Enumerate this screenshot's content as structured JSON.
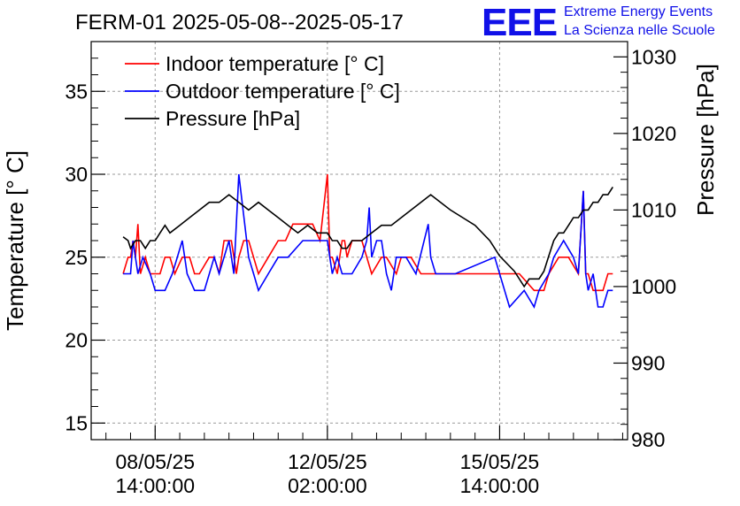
{
  "chart_data": {
    "type": "line",
    "title": "FERM-01 2025-05-08--2025-05-17",
    "ylabel": "Temperature [° C]",
    "y2label": "Pressure [hPa]",
    "xlabel": "",
    "ylim": [
      14,
      38
    ],
    "y2lim": [
      980,
      1032
    ],
    "xlim": [
      -1.3,
      9.6
    ],
    "x_unit": "days after 08/05/25 14:00:00",
    "grid": true,
    "legend_position": "top-left",
    "y_ticks": [
      "15",
      "20",
      "25",
      "30",
      "35"
    ],
    "y2_ticks": [
      "980",
      "990",
      "1000",
      "1010",
      "1020",
      "1030"
    ],
    "x_ticks": [
      {
        "x": 0,
        "line1": "08/05/25",
        "line2": "14:00:00"
      },
      {
        "x": 3.5,
        "line1": "12/05/25",
        "line2": "02:00:00"
      },
      {
        "x": 7,
        "line1": "15/05/25",
        "line2": "14:00:00"
      }
    ],
    "logo": {
      "mark": "EEE",
      "line1": "Extreme Energy Events",
      "line2": "La Scienza nelle Scuole"
    },
    "series": [
      {
        "name": "Indoor temperature [° C]",
        "axis": "left",
        "color": "#ff0000",
        "x": [
          -0.65,
          -0.55,
          -0.5,
          -0.45,
          -0.4,
          -0.35,
          -0.3,
          -0.2,
          -0.1,
          0.1,
          0.2,
          0.3,
          0.4,
          0.55,
          0.7,
          0.8,
          0.9,
          1.1,
          1.2,
          1.3,
          1.4,
          1.55,
          1.65,
          1.7,
          1.8,
          1.9,
          2.1,
          2.3,
          2.5,
          2.65,
          2.8,
          3.0,
          3.2,
          3.35,
          3.5,
          3.55,
          3.6,
          3.7,
          3.75,
          3.8,
          3.85,
          3.9,
          4.0,
          4.2,
          4.4,
          4.6,
          4.7,
          4.9,
          5.0,
          5.2,
          5.4,
          5.6,
          5.9,
          6.2,
          6.6,
          6.9,
          7.4,
          7.7,
          7.9,
          8.0,
          8.2,
          8.4,
          8.6,
          8.7,
          8.75,
          8.8,
          8.9,
          9.1,
          9.2,
          9.3
        ],
        "y": [
          24,
          25,
          25,
          26,
          25,
          27,
          24,
          25,
          24,
          24,
          25,
          25,
          24,
          25,
          25,
          24,
          24,
          25,
          25,
          24,
          26,
          26,
          24,
          25,
          26,
          26,
          24,
          25,
          26,
          26,
          27,
          27,
          27,
          26,
          30,
          25,
          25,
          24,
          25,
          26,
          26,
          25,
          26,
          26,
          24,
          25,
          25,
          24,
          25,
          25,
          24,
          24,
          24,
          24,
          24,
          24,
          24,
          23,
          23,
          24,
          25,
          25,
          24,
          29,
          24,
          24,
          23,
          23,
          24,
          24
        ]
      },
      {
        "name": "Outdoor temperature [° C]",
        "axis": "left",
        "color": "#0000ff",
        "x": [
          -0.65,
          -0.5,
          -0.45,
          -0.4,
          -0.35,
          -0.25,
          -0.1,
          0.0,
          0.2,
          0.35,
          0.45,
          0.55,
          0.65,
          0.8,
          1.0,
          1.2,
          1.3,
          1.4,
          1.5,
          1.6,
          1.7,
          1.9,
          2.0,
          2.1,
          2.3,
          2.5,
          2.7,
          3.0,
          3.2,
          3.4,
          3.5,
          3.55,
          3.6,
          3.7,
          3.8,
          4.0,
          4.2,
          4.3,
          4.35,
          4.4,
          4.5,
          4.6,
          4.7,
          4.8,
          4.9,
          5.1,
          5.3,
          5.55,
          5.6,
          5.7,
          5.9,
          6.1,
          6.9,
          7.2,
          7.5,
          7.7,
          7.8,
          8.0,
          8.1,
          8.3,
          8.5,
          8.6,
          8.7,
          8.75,
          8.8,
          8.9,
          9.0,
          9.1,
          9.2,
          9.3
        ],
        "y": [
          24,
          24,
          26,
          25,
          24,
          25,
          24,
          23,
          23,
          24,
          25,
          26,
          24,
          23,
          23,
          25,
          24,
          25,
          26,
          24,
          30,
          25,
          24,
          23,
          24,
          25,
          25,
          26,
          26,
          26,
          26,
          25,
          24,
          25,
          24,
          24,
          25,
          26,
          28,
          25,
          26,
          26,
          24,
          23,
          25,
          25,
          24,
          27,
          25,
          24,
          24,
          24,
          25,
          22,
          23,
          22,
          23,
          24,
          25,
          26,
          25,
          24,
          29,
          24,
          23,
          24,
          22,
          22,
          23,
          23
        ]
      },
      {
        "name": "Pressure [hPa]",
        "axis": "right",
        "color": "#000000",
        "x": [
          -0.65,
          -0.55,
          -0.5,
          -0.4,
          -0.3,
          -0.2,
          -0.1,
          0.0,
          0.1,
          0.2,
          0.3,
          0.5,
          0.7,
          0.9,
          1.1,
          1.3,
          1.5,
          1.7,
          1.9,
          2.1,
          2.3,
          2.5,
          2.7,
          2.9,
          3.1,
          3.3,
          3.5,
          3.6,
          3.7,
          3.8,
          3.9,
          4.0,
          4.2,
          4.4,
          4.6,
          4.8,
          5.0,
          5.2,
          5.4,
          5.6,
          5.8,
          6.0,
          6.5,
          6.8,
          7.0,
          7.3,
          7.5,
          7.6,
          7.7,
          7.8,
          7.9,
          8.0,
          8.1,
          8.2,
          8.3,
          8.4,
          8.5,
          8.6,
          8.7,
          8.8,
          8.9,
          9.0,
          9.1,
          9.2,
          9.3
        ],
        "y": [
          1006.5,
          1006,
          1005,
          1006,
          1006,
          1005,
          1006,
          1006,
          1007,
          1008,
          1007,
          1008,
          1009,
          1010,
          1011,
          1011,
          1012,
          1011,
          1010,
          1011,
          1010,
          1009,
          1008,
          1007,
          1008,
          1007,
          1007,
          1006,
          1006,
          1005,
          1005,
          1006,
          1006,
          1007,
          1008,
          1008,
          1009,
          1010,
          1011,
          1012,
          1011,
          1010,
          1008,
          1006,
          1004,
          1002,
          1000,
          1001,
          1001,
          1001,
          1002,
          1004,
          1006,
          1007,
          1007,
          1008,
          1009,
          1009,
          1010,
          1010,
          1011,
          1011,
          1012,
          1012,
          1013
        ]
      }
    ]
  }
}
